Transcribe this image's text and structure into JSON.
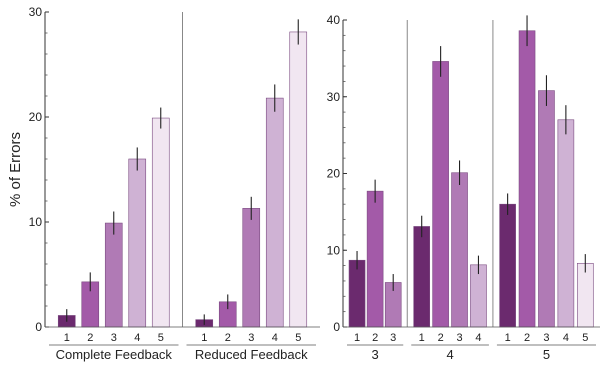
{
  "colors": [
    "#6b2a6e",
    "#a35aa8",
    "#b07ab5",
    "#cfb2d4",
    "#f1e6f1"
  ],
  "chart_data": [
    {
      "type": "bar",
      "ylabel": "% of Errors",
      "ylim": [
        0,
        30
      ],
      "yticks": [
        0,
        10,
        20,
        30
      ],
      "groups": [
        {
          "label": "Complete Feedback",
          "categories": [
            "1",
            "2",
            "3",
            "4",
            "5"
          ],
          "values": [
            1.1,
            4.3,
            9.9,
            16.0,
            19.9
          ],
          "errors": [
            0.6,
            0.9,
            1.1,
            1.1,
            1.0
          ]
        },
        {
          "label": "Reduced Feedback",
          "categories": [
            "1",
            "2",
            "3",
            "4",
            "5"
          ],
          "values": [
            0.7,
            2.4,
            11.3,
            21.8,
            28.1
          ],
          "errors": [
            0.5,
            0.7,
            1.1,
            1.3,
            1.2
          ]
        }
      ]
    },
    {
      "type": "bar",
      "ylim": [
        0,
        40
      ],
      "yticks": [
        0,
        10,
        20,
        30,
        40
      ],
      "groups": [
        {
          "label": "3",
          "categories": [
            "1",
            "2",
            "3"
          ],
          "values": [
            8.7,
            17.7,
            5.8
          ],
          "errors": [
            1.2,
            1.5,
            1.1
          ]
        },
        {
          "label": "4",
          "categories": [
            "1",
            "2",
            "3",
            "4"
          ],
          "values": [
            13.1,
            34.6,
            20.1,
            8.1
          ],
          "errors": [
            1.4,
            2.0,
            1.6,
            1.2
          ]
        },
        {
          "label": "5",
          "categories": [
            "1",
            "2",
            "3",
            "4",
            "5"
          ],
          "values": [
            16.0,
            38.6,
            30.8,
            27.0,
            8.3
          ],
          "errors": [
            1.4,
            2.0,
            2.0,
            1.9,
            1.2
          ]
        }
      ]
    }
  ]
}
